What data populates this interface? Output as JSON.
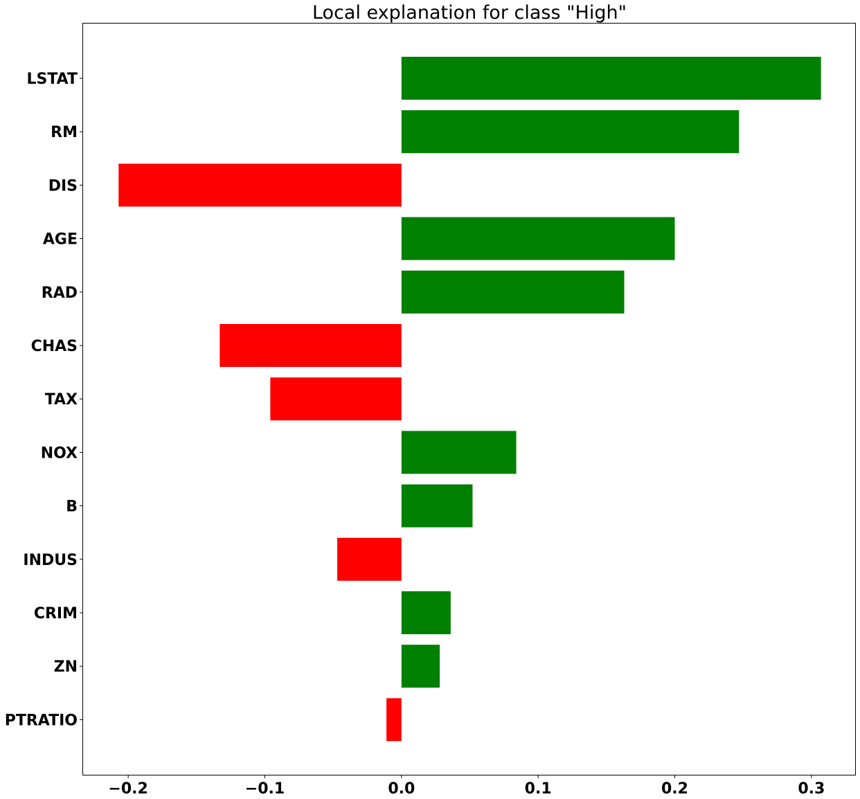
{
  "chart_data": {
    "type": "bar",
    "orientation": "horizontal",
    "title": "Local explanation for class \"High\"",
    "xlabel": "",
    "ylabel": "",
    "xlim": [
      -0.233,
      0.332
    ],
    "xticks": [
      -0.2,
      -0.1,
      0.0,
      0.1,
      0.2,
      0.3
    ],
    "xtick_labels": [
      "−0.2",
      "−0.1",
      "0.0",
      "0.1",
      "0.2",
      "0.3"
    ],
    "grid": false,
    "categories": [
      "LSTAT",
      "RM",
      "DIS",
      "AGE",
      "RAD",
      "CHAS",
      "TAX",
      "NOX",
      "B",
      "INDUS",
      "CRIM",
      "ZN",
      "PTRATIO"
    ],
    "values": [
      0.307,
      0.247,
      -0.207,
      0.2,
      0.163,
      -0.133,
      -0.096,
      0.084,
      0.052,
      -0.047,
      0.036,
      0.028,
      -0.011
    ],
    "colors": {
      "positive": "#008000",
      "negative": "#ff0000"
    }
  }
}
